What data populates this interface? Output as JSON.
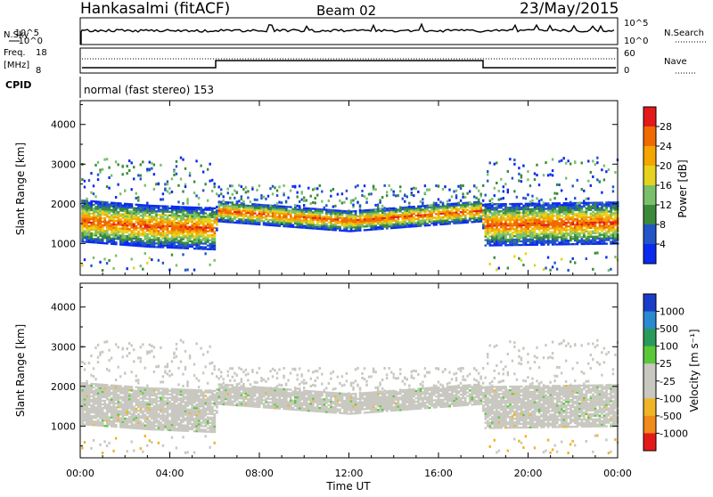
{
  "header": {
    "station": "Hankasalmi (fitACF)",
    "beam": "Beam 02",
    "date": "23/May/2015"
  },
  "status_panels": {
    "nsky_label": "N.Sky",
    "nsky_ticks": [
      "10^5",
      "10^0"
    ],
    "nsearch_label": "N.Search",
    "nsearch_ticks": [
      "10^5",
      "10^0"
    ],
    "freq_label_1": "Freq.",
    "freq_label_2": "[MHz]",
    "freq_ticks": [
      "18",
      "8"
    ],
    "nave_label": "Nave",
    "nave_ticks": [
      "60",
      "0"
    ],
    "cpid_label": "CPID",
    "cpid_text": "normal (fast stereo) 153"
  },
  "chart_data": [
    {
      "type": "heatmap",
      "name": "power",
      "ylabel": "Slant Range [km]",
      "ylim": [
        200,
        4600
      ],
      "yticks": [
        "1000",
        "2000",
        "3000",
        "4000"
      ],
      "xlim_hours": [
        0,
        24
      ],
      "colorbar_label": "Power [dB]",
      "colorbar_ticks": [
        "4",
        "8",
        "12",
        "16",
        "20",
        "24",
        "28"
      ],
      "colorbar_colors": [
        "#0a2af0",
        "#2255c8",
        "#3b8a3b",
        "#7ac06a",
        "#e6d21e",
        "#f5a500",
        "#f06a00",
        "#e41a1a"
      ],
      "echo_band": [
        {
          "t": 0,
          "center": 1550
        },
        {
          "t": 3,
          "center": 1420
        },
        {
          "t": 6,
          "center": 1350
        },
        {
          "t": 6.1,
          "center": 1800
        },
        {
          "t": 12,
          "center": 1550
        },
        {
          "t": 17.9,
          "center": 1800
        },
        {
          "t": 18,
          "center": 1450
        },
        {
          "t": 24,
          "center": 1500
        }
      ]
    },
    {
      "type": "heatmap",
      "name": "velocity",
      "ylabel": "Slant Range [km]",
      "ylim": [
        200,
        4600
      ],
      "yticks": [
        "1000",
        "2000",
        "3000",
        "4000"
      ],
      "xlim_hours": [
        0,
        24
      ],
      "colorbar_label": "Velocity [m s⁻¹]",
      "colorbar_ticks": [
        "1000",
        "500",
        "100",
        "25",
        "-25",
        "-100",
        "-500",
        "-1000"
      ],
      "colorbar_colors": [
        "#1a3cc8",
        "#2a8ad0",
        "#2a9a5a",
        "#5ac83a",
        "#c8c8c0",
        "#c8c8c0",
        "#f0b428",
        "#f08a1a",
        "#e41a1a"
      ]
    }
  ],
  "time_axis": {
    "ticks": [
      "00:00",
      "04:00",
      "08:00",
      "12:00",
      "16:00",
      "20:00",
      "00:00"
    ],
    "label": "Time UT"
  }
}
